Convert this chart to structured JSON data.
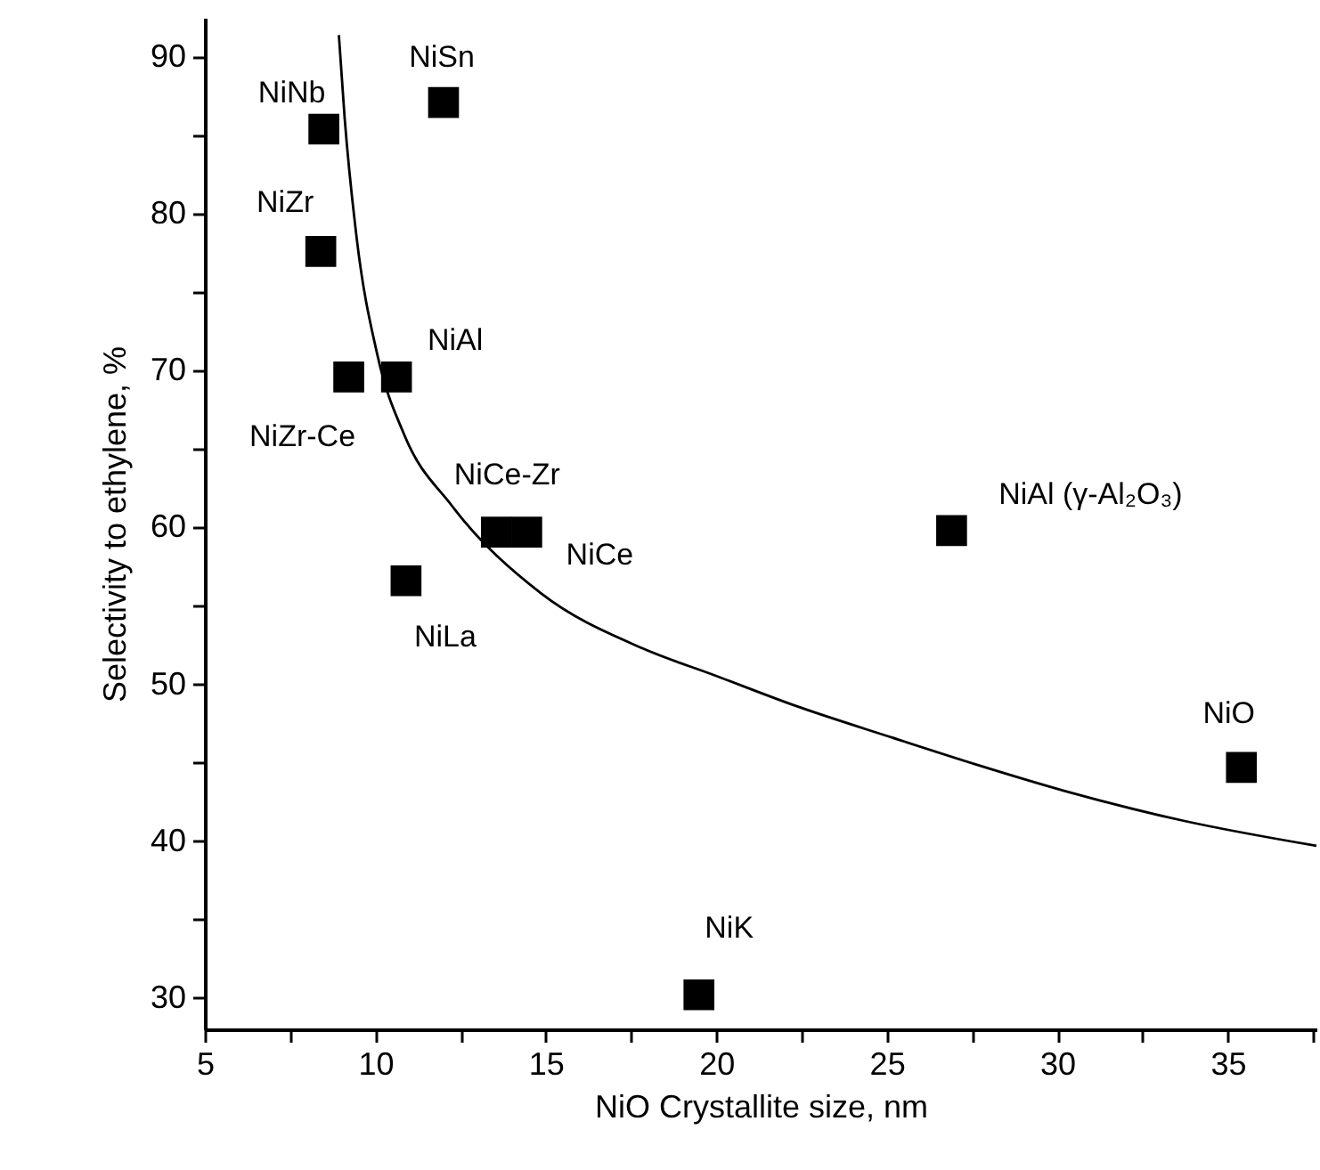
{
  "chart_data": {
    "type": "scatter",
    "xlabel": "NiO Crystallite size, nm",
    "ylabel": "Selectivity to ethylene, %",
    "xlim": [
      5,
      37.6
    ],
    "ylim": [
      28,
      92.5
    ],
    "xticks": [
      5,
      {
        "value": 7.5,
        "label": null
      },
      10,
      {
        "value": 12.5,
        "label": null
      },
      15,
      {
        "value": 17.5,
        "label": null
      },
      20,
      {
        "value": 22.5,
        "label": null
      },
      25,
      {
        "value": 27.5,
        "label": null
      },
      30,
      {
        "value": 32.5,
        "label": null
      },
      35,
      {
        "value": 37.5,
        "label": null
      }
    ],
    "yticks": [
      30,
      {
        "value": 35,
        "label": null
      },
      40,
      {
        "value": 45,
        "label": null
      },
      50,
      {
        "value": 55,
        "label": null
      },
      60,
      {
        "value": 65,
        "label": null
      },
      70,
      {
        "value": 75,
        "label": null
      },
      80,
      {
        "value": 85,
        "label": null
      },
      90
    ],
    "grid": false,
    "series": [
      {
        "marker": "square",
        "color": "#000000",
        "x": [
          8.49,
          12.0,
          8.4,
          9.22,
          10.62,
          13.55,
          14.44,
          10.9,
          19.49,
          26.9,
          35.4
        ],
        "values": [
          85.4,
          87.1,
          77.6,
          69.6,
          69.6,
          59.7,
          59.7,
          56.6,
          30.2,
          59.8,
          44.7
        ]
      },
      {
        "type": "line",
        "color": "#000000",
        "line_style": "solid",
        "marker": "none",
        "x": [
          8.93,
          9.1,
          9.45,
          10.06,
          10.85,
          12.24,
          14.86,
          17.83,
          19.92,
          22.36,
          25.16,
          27.6,
          30.22,
          33.7,
          37.6
        ],
        "values": [
          91.4,
          86.1,
          78.5,
          71.0,
          65.9,
          61.4,
          55.8,
          52.3,
          50.6,
          48.6,
          46.6,
          44.9,
          43.2,
          41.3,
          39.7
        ]
      }
    ],
    "annotations": [
      {
        "text": "NiNb",
        "x": 8.49,
        "y": 85.4
      },
      {
        "text": "NiSn",
        "x": 12.0,
        "y": 87.1
      },
      {
        "text": "NiZr",
        "x": 8.4,
        "y": 77.6
      },
      {
        "text": "NiZr-Ce",
        "x": 9.22,
        "y": 69.6
      },
      {
        "text": "NiAl",
        "x": 10.62,
        "y": 69.6
      },
      {
        "text": "NiCe-Zr",
        "x": 13.55,
        "y": 59.7
      },
      {
        "text": "NiCe",
        "x": 14.44,
        "y": 59.7
      },
      {
        "text": "NiLa",
        "x": 10.9,
        "y": 56.6
      },
      {
        "text": "NiK",
        "x": 19.49,
        "y": 30.2
      },
      {
        "text": "NiAl (γ-Al₂O₃)",
        "x": 26.9,
        "y": 59.8
      },
      {
        "text": "NiO",
        "x": 35.4,
        "y": 44.7
      }
    ]
  }
}
